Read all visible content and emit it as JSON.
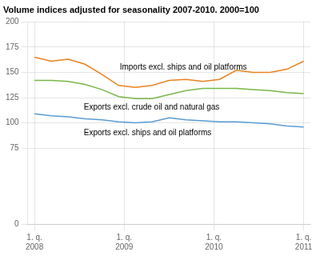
{
  "chart_data": {
    "type": "line",
    "title": "Volume indices adjusted for seasonality 2007-2010. 2000=100",
    "x": [
      0,
      0.75,
      1.5,
      2.25,
      3,
      3.75,
      4.5,
      5.25,
      6,
      6.75,
      7.5,
      8.25,
      9,
      9.75,
      10.5,
      11.25,
      12
    ],
    "series": [
      {
        "color": "#E8821E",
        "values": [
          165,
          161,
          163,
          158,
          148,
          137,
          135,
          137,
          142,
          143,
          141,
          143,
          152,
          150,
          150,
          153,
          161
        ]
      },
      {
        "color": "#7AB648",
        "values": [
          142,
          142,
          141,
          138,
          133,
          126,
          124,
          124,
          128,
          132,
          134,
          134,
          134,
          133,
          132,
          130,
          129
        ]
      },
      {
        "color": "#5B9BD5",
        "values": [
          109,
          107,
          106,
          104,
          103,
          101,
          100,
          101,
          105,
          103,
          102,
          101,
          101,
          100,
          99,
          97,
          96
        ]
      }
    ],
    "xlim": [
      -0.3,
      12.3
    ],
    "xticks": [
      {
        "value": 0,
        "label": "1. q.\n2008"
      },
      {
        "value": 4,
        "label": "1. q.\n2009"
      },
      {
        "value": 8,
        "label": "1. q.\n2010"
      },
      {
        "value": 12,
        "label": "1. q.\n2011"
      }
    ],
    "ylim": [
      0,
      200
    ],
    "yticks": [
      0,
      75,
      100,
      125,
      150,
      175,
      200
    ],
    "grid": true,
    "annotations": [
      {
        "text": "Imports excl. ships and oil platforms",
        "x": 3.8,
        "y": 153
      },
      {
        "text": "Exports excl. crude oil and natural gas",
        "x": 2.2,
        "y": 113
      },
      {
        "text": "Exports excl. ships and oil platforms",
        "x": 2.2,
        "y": 88
      }
    ]
  }
}
